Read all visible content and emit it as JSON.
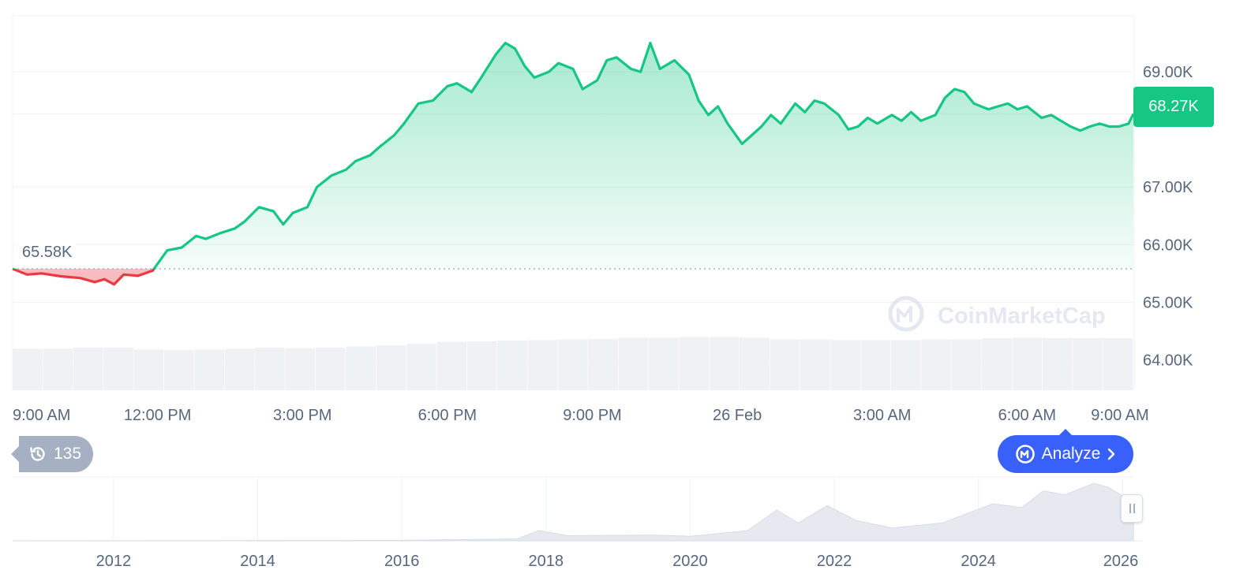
{
  "chart_data": {
    "type": "area",
    "y_axis_ticks": [
      "69.00K",
      "68.27K",
      "67.00K",
      "66.00K",
      "65.00K",
      "64.00K"
    ],
    "y_tick_values": [
      69000,
      67000,
      66000,
      65000,
      64000
    ],
    "ylim": [
      63500,
      70000
    ],
    "x_axis_ticks": [
      "9:00 AM",
      "12:00 PM",
      "3:00 PM",
      "6:00 PM",
      "9:00 PM",
      "26 Feb",
      "3:00 AM",
      "6:00 AM",
      "9:00 AM"
    ],
    "baseline_value": 65580,
    "baseline_label": "65.58K",
    "current_value": 68270,
    "current_label": "68.27K",
    "grid": true,
    "colors": {
      "up": "#16c784",
      "down": "#ea3943",
      "grid": "#eff2f5",
      "axis_text": "#58667e",
      "volume": "#eff2f5"
    },
    "price_series": [
      [
        0,
        65580
      ],
      [
        0.3,
        65480
      ],
      [
        0.6,
        65500
      ],
      [
        1.0,
        65450
      ],
      [
        1.4,
        65420
      ],
      [
        1.7,
        65350
      ],
      [
        1.9,
        65400
      ],
      [
        2.1,
        65310
      ],
      [
        2.3,
        65480
      ],
      [
        2.6,
        65460
      ],
      [
        2.9,
        65550
      ],
      [
        3.2,
        65900
      ],
      [
        3.5,
        65950
      ],
      [
        3.8,
        66150
      ],
      [
        4.0,
        66100
      ],
      [
        4.3,
        66200
      ],
      [
        4.6,
        66280
      ],
      [
        4.8,
        66400
      ],
      [
        5.1,
        66650
      ],
      [
        5.4,
        66580
      ],
      [
        5.6,
        66350
      ],
      [
        5.8,
        66550
      ],
      [
        6.1,
        66650
      ],
      [
        6.3,
        67000
      ],
      [
        6.6,
        67200
      ],
      [
        6.9,
        67300
      ],
      [
        7.1,
        67450
      ],
      [
        7.4,
        67550
      ],
      [
        7.6,
        67700
      ],
      [
        7.9,
        67900
      ],
      [
        8.1,
        68100
      ],
      [
        8.4,
        68450
      ],
      [
        8.7,
        68500
      ],
      [
        9.0,
        68750
      ],
      [
        9.2,
        68800
      ],
      [
        9.5,
        68650
      ],
      [
        9.7,
        68900
      ],
      [
        10.0,
        69300
      ],
      [
        10.2,
        69500
      ],
      [
        10.4,
        69400
      ],
      [
        10.6,
        69100
      ],
      [
        10.8,
        68900
      ],
      [
        11.1,
        69000
      ],
      [
        11.3,
        69150
      ],
      [
        11.6,
        69050
      ],
      [
        11.8,
        68700
      ],
      [
        12.1,
        68850
      ],
      [
        12.3,
        69200
      ],
      [
        12.5,
        69250
      ],
      [
        12.8,
        69050
      ],
      [
        13.0,
        69000
      ],
      [
        13.2,
        69500
      ],
      [
        13.4,
        69050
      ],
      [
        13.7,
        69200
      ],
      [
        14.0,
        68950
      ],
      [
        14.2,
        68500
      ],
      [
        14.4,
        68250
      ],
      [
        14.6,
        68400
      ],
      [
        14.8,
        68100
      ],
      [
        15.1,
        67750
      ],
      [
        15.3,
        67900
      ],
      [
        15.5,
        68050
      ],
      [
        15.7,
        68250
      ],
      [
        15.9,
        68100
      ],
      [
        16.2,
        68450
      ],
      [
        16.4,
        68300
      ],
      [
        16.6,
        68500
      ],
      [
        16.8,
        68450
      ],
      [
        17.1,
        68250
      ],
      [
        17.3,
        68000
      ],
      [
        17.5,
        68050
      ],
      [
        17.7,
        68200
      ],
      [
        17.9,
        68100
      ],
      [
        18.2,
        68250
      ],
      [
        18.4,
        68150
      ],
      [
        18.6,
        68300
      ],
      [
        18.8,
        68150
      ],
      [
        19.1,
        68250
      ],
      [
        19.3,
        68550
      ],
      [
        19.5,
        68700
      ],
      [
        19.7,
        68650
      ],
      [
        19.9,
        68450
      ],
      [
        20.2,
        68350
      ],
      [
        20.4,
        68400
      ],
      [
        20.6,
        68450
      ],
      [
        20.8,
        68350
      ],
      [
        21.0,
        68400
      ],
      [
        21.3,
        68200
      ],
      [
        21.5,
        68250
      ],
      [
        21.7,
        68150
      ],
      [
        21.9,
        68050
      ],
      [
        22.1,
        67980
      ],
      [
        22.3,
        68050
      ],
      [
        22.5,
        68100
      ],
      [
        22.7,
        68050
      ],
      [
        22.9,
        68050
      ],
      [
        23.1,
        68100
      ],
      [
        23.2,
        68270
      ]
    ],
    "volume_series": [
      0.7,
      0.7,
      0.72,
      0.72,
      0.69,
      0.68,
      0.69,
      0.7,
      0.72,
      0.71,
      0.72,
      0.74,
      0.76,
      0.79,
      0.82,
      0.83,
      0.84,
      0.85,
      0.86,
      0.87,
      0.89,
      0.89,
      0.9,
      0.9,
      0.89,
      0.86,
      0.86,
      0.85,
      0.85,
      0.85,
      0.86,
      0.86,
      0.88,
      0.89,
      0.88,
      0.88,
      0.88
    ],
    "brand_watermark": "CoinMarketCap",
    "overview": {
      "type": "area",
      "x_ticks": [
        "2012",
        "2014",
        "2016",
        "2018",
        "2020",
        "2022",
        "2024",
        "2026"
      ],
      "series": [
        [
          2010.6,
          0
        ],
        [
          2013.0,
          0.2
        ],
        [
          2016.0,
          0.8
        ],
        [
          2017.6,
          3
        ],
        [
          2017.9,
          16
        ],
        [
          2018.3,
          8
        ],
        [
          2019.5,
          9
        ],
        [
          2020.0,
          7
        ],
        [
          2020.8,
          16
        ],
        [
          2021.2,
          48
        ],
        [
          2021.5,
          28
        ],
        [
          2021.9,
          55
        ],
        [
          2022.3,
          32
        ],
        [
          2022.8,
          20
        ],
        [
          2023.5,
          28
        ],
        [
          2024.2,
          58
        ],
        [
          2024.6,
          52
        ],
        [
          2024.9,
          78
        ],
        [
          2025.2,
          72
        ],
        [
          2025.6,
          90
        ],
        [
          2025.8,
          84
        ],
        [
          2026.0,
          70
        ],
        [
          2026.15,
          55
        ]
      ]
    }
  },
  "controls": {
    "history_count": "135",
    "analyze_label": "Analyze"
  },
  "icons": {
    "history": "history-clock-icon",
    "analyze": "coinmarketcap-logo-icon",
    "chevron": "chevron-right-icon"
  }
}
